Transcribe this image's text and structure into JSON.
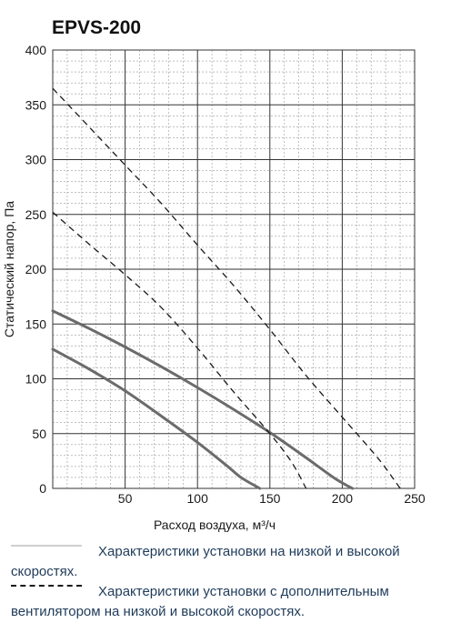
{
  "chart_data": {
    "type": "line",
    "title": "EPVS-200",
    "xlabel": "Расход воздуха, м³/ч",
    "ylabel": "Статический напор, Па",
    "xlim": [
      0,
      250
    ],
    "ylim": [
      0,
      400
    ],
    "x_ticks": [
      "50",
      "100",
      "150",
      "200",
      "250"
    ],
    "y_ticks": [
      "0",
      "50",
      "100",
      "150",
      "200",
      "250",
      "300",
      "350",
      "400"
    ],
    "grid": true,
    "series": [
      {
        "style": "solid",
        "color": "#6b6b6b",
        "points": [
          [
            0,
            127
          ],
          [
            25,
            109
          ],
          [
            50,
            89
          ],
          [
            75,
            66
          ],
          [
            100,
            42
          ],
          [
            120,
            21
          ],
          [
            130,
            10
          ],
          [
            143,
            0
          ]
        ]
      },
      {
        "style": "solid",
        "color": "#6b6b6b",
        "points": [
          [
            0,
            162
          ],
          [
            25,
            146
          ],
          [
            50,
            129
          ],
          [
            75,
            111
          ],
          [
            100,
            92
          ],
          [
            125,
            72
          ],
          [
            150,
            51
          ],
          [
            175,
            28
          ],
          [
            195,
            9
          ],
          [
            207,
            0
          ]
        ]
      },
      {
        "style": "dashed",
        "color": "#1a1a1a",
        "points": [
          [
            0,
            252
          ],
          [
            25,
            223
          ],
          [
            50,
            195
          ],
          [
            75,
            165
          ],
          [
            100,
            128
          ],
          [
            125,
            88
          ],
          [
            150,
            50
          ],
          [
            165,
            24
          ],
          [
            175,
            0
          ]
        ]
      },
      {
        "style": "dashed",
        "color": "#1a1a1a",
        "points": [
          [
            0,
            365
          ],
          [
            25,
            330
          ],
          [
            50,
            295
          ],
          [
            75,
            260
          ],
          [
            100,
            222
          ],
          [
            125,
            185
          ],
          [
            150,
            145
          ],
          [
            175,
            103
          ],
          [
            200,
            65
          ],
          [
            225,
            27
          ],
          [
            240,
            0
          ]
        ]
      }
    ]
  },
  "legend": {
    "item1": "Характеристики установки на низкой и высокой скоростях.",
    "item2": "Характеристики установки с дополнительным вентилятором на низкой и высокой скоростях."
  }
}
